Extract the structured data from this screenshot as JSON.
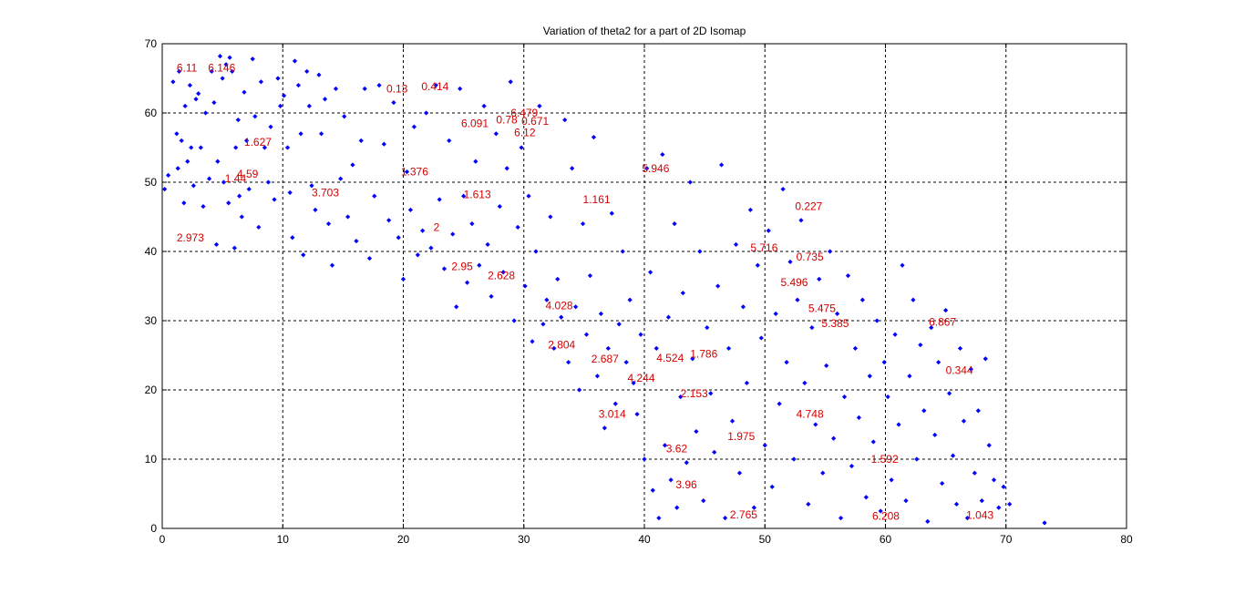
{
  "chart_data": {
    "type": "scatter",
    "title": "Variation of theta2 for a part of 2D Isomap",
    "xlabel": "",
    "ylabel": "",
    "xlim": [
      0,
      80
    ],
    "ylim": [
      0,
      70
    ],
    "x_ticks": [
      "0",
      "10",
      "20",
      "30",
      "40",
      "50",
      "60",
      "70",
      "80"
    ],
    "y_ticks": [
      "0",
      "10",
      "20",
      "30",
      "40",
      "50",
      "60",
      "70"
    ],
    "grid": true,
    "grid_style": "dashed",
    "marker_color": "#0000ff",
    "annotation_color": "#d40000",
    "points": [
      [
        0.2,
        49
      ],
      [
        0.5,
        51
      ],
      [
        0.9,
        64.5
      ],
      [
        1.2,
        57
      ],
      [
        1.3,
        52
      ],
      [
        1.4,
        66
      ],
      [
        1.6,
        56
      ],
      [
        1.8,
        47
      ],
      [
        1.9,
        61
      ],
      [
        2.1,
        53
      ],
      [
        2.3,
        64
      ],
      [
        2.4,
        55
      ],
      [
        2.6,
        49.5
      ],
      [
        2.8,
        62
      ],
      [
        3.0,
        62.8
      ],
      [
        3.2,
        55
      ],
      [
        3.4,
        46.5
      ],
      [
        3.6,
        60
      ],
      [
        3.9,
        50.5
      ],
      [
        4.1,
        66
      ],
      [
        4.3,
        61.5
      ],
      [
        4.5,
        41
      ],
      [
        4.6,
        53
      ],
      [
        4.8,
        68.2
      ],
      [
        5.0,
        65
      ],
      [
        5.1,
        50
      ],
      [
        5.3,
        67
      ],
      [
        5.5,
        47
      ],
      [
        5.6,
        68
      ],
      [
        5.8,
        66
      ],
      [
        6.0,
        40.5
      ],
      [
        6.1,
        55
      ],
      [
        6.3,
        59
      ],
      [
        6.4,
        48
      ],
      [
        6.6,
        45
      ],
      [
        6.8,
        63
      ],
      [
        7.0,
        56
      ],
      [
        7.2,
        49
      ],
      [
        7.5,
        67.8
      ],
      [
        7.7,
        59.5
      ],
      [
        8.0,
        43.5
      ],
      [
        8.2,
        64.5
      ],
      [
        8.5,
        55
      ],
      [
        8.8,
        50
      ],
      [
        9.0,
        58
      ],
      [
        9.3,
        47.5
      ],
      [
        9.6,
        65
      ],
      [
        9.8,
        61
      ],
      [
        10.1,
        62.5
      ],
      [
        10.4,
        55
      ],
      [
        10.6,
        48.5
      ],
      [
        10.8,
        42
      ],
      [
        11.0,
        67.5
      ],
      [
        11.3,
        64
      ],
      [
        11.5,
        57
      ],
      [
        11.7,
        39.5
      ],
      [
        12.0,
        66
      ],
      [
        12.2,
        61
      ],
      [
        12.4,
        49.5
      ],
      [
        12.7,
        46
      ],
      [
        13.0,
        65.5
      ],
      [
        13.2,
        57
      ],
      [
        13.5,
        62
      ],
      [
        13.8,
        44
      ],
      [
        14.1,
        38
      ],
      [
        14.4,
        63.5
      ],
      [
        14.8,
        50.5
      ],
      [
        15.1,
        59.5
      ],
      [
        15.4,
        45
      ],
      [
        15.8,
        52.5
      ],
      [
        16.1,
        41.5
      ],
      [
        16.5,
        56
      ],
      [
        16.8,
        63.5
      ],
      [
        17.2,
        39
      ],
      [
        17.6,
        48
      ],
      [
        18.0,
        64
      ],
      [
        18.4,
        55.5
      ],
      [
        18.8,
        44.5
      ],
      [
        19.2,
        61.5
      ],
      [
        19.6,
        42
      ],
      [
        20.0,
        36
      ],
      [
        20.3,
        51.5
      ],
      [
        20.6,
        46
      ],
      [
        20.9,
        58
      ],
      [
        21.2,
        39.5
      ],
      [
        21.6,
        43
      ],
      [
        21.9,
        60
      ],
      [
        22.3,
        40.5
      ],
      [
        22.7,
        64
      ],
      [
        23.0,
        47.5
      ],
      [
        23.4,
        37.5
      ],
      [
        23.8,
        56
      ],
      [
        24.1,
        42.5
      ],
      [
        24.4,
        32
      ],
      [
        24.7,
        63.5
      ],
      [
        25.0,
        48
      ],
      [
        25.3,
        35.5
      ],
      [
        25.7,
        44
      ],
      [
        26.0,
        53
      ],
      [
        26.3,
        38
      ],
      [
        26.7,
        61
      ],
      [
        27.0,
        41
      ],
      [
        27.3,
        33.5
      ],
      [
        27.7,
        57
      ],
      [
        28.0,
        46.5
      ],
      [
        28.3,
        37
      ],
      [
        28.6,
        52
      ],
      [
        28.9,
        64.5
      ],
      [
        29.2,
        30
      ],
      [
        29.5,
        43.5
      ],
      [
        29.8,
        55
      ],
      [
        30.1,
        35
      ],
      [
        30.4,
        48
      ],
      [
        30.7,
        27
      ],
      [
        31.0,
        40
      ],
      [
        31.3,
        61
      ],
      [
        31.6,
        29.5
      ],
      [
        31.9,
        33
      ],
      [
        32.2,
        45
      ],
      [
        32.5,
        26
      ],
      [
        32.8,
        36
      ],
      [
        33.1,
        30.5
      ],
      [
        33.4,
        59
      ],
      [
        33.7,
        24
      ],
      [
        34.0,
        52
      ],
      [
        34.3,
        32
      ],
      [
        34.6,
        20
      ],
      [
        34.9,
        44
      ],
      [
        35.2,
        28
      ],
      [
        35.5,
        36.5
      ],
      [
        35.8,
        56.5
      ],
      [
        36.1,
        22
      ],
      [
        36.4,
        31
      ],
      [
        36.7,
        14.5
      ],
      [
        37.0,
        26
      ],
      [
        37.3,
        45.5
      ],
      [
        37.6,
        18
      ],
      [
        37.9,
        29.5
      ],
      [
        38.2,
        40
      ],
      [
        38.5,
        24
      ],
      [
        38.8,
        33
      ],
      [
        39.1,
        21
      ],
      [
        39.4,
        16.5
      ],
      [
        39.7,
        28
      ],
      [
        40.0,
        10
      ],
      [
        40.2,
        52
      ],
      [
        40.5,
        37
      ],
      [
        40.7,
        5.5
      ],
      [
        41.0,
        26
      ],
      [
        41.2,
        1.5
      ],
      [
        41.5,
        54
      ],
      [
        41.7,
        12
      ],
      [
        42.0,
        30.5
      ],
      [
        42.2,
        7
      ],
      [
        42.5,
        44
      ],
      [
        42.7,
        3
      ],
      [
        43.0,
        19
      ],
      [
        43.2,
        34
      ],
      [
        43.5,
        9.5
      ],
      [
        43.8,
        50
      ],
      [
        44.0,
        24.5
      ],
      [
        44.3,
        14
      ],
      [
        44.6,
        40
      ],
      [
        44.9,
        4
      ],
      [
        45.2,
        29
      ],
      [
        45.5,
        19.5
      ],
      [
        45.8,
        11
      ],
      [
        46.1,
        35
      ],
      [
        46.4,
        52.5
      ],
      [
        46.7,
        1.5
      ],
      [
        47.0,
        26
      ],
      [
        47.3,
        15.5
      ],
      [
        47.6,
        41
      ],
      [
        47.9,
        8
      ],
      [
        48.2,
        32
      ],
      [
        48.5,
        21
      ],
      [
        48.8,
        46
      ],
      [
        49.1,
        3
      ],
      [
        49.4,
        38
      ],
      [
        49.7,
        27.5
      ],
      [
        50.0,
        12
      ],
      [
        50.3,
        43
      ],
      [
        50.6,
        6
      ],
      [
        50.9,
        31
      ],
      [
        51.2,
        18
      ],
      [
        51.5,
        49
      ],
      [
        51.8,
        24
      ],
      [
        52.1,
        38.5
      ],
      [
        52.4,
        10
      ],
      [
        52.7,
        33
      ],
      [
        53.0,
        44.5
      ],
      [
        53.3,
        21
      ],
      [
        53.6,
        3.5
      ],
      [
        53.9,
        29
      ],
      [
        54.2,
        15
      ],
      [
        54.5,
        36
      ],
      [
        54.8,
        8
      ],
      [
        55.1,
        23.5
      ],
      [
        55.4,
        40
      ],
      [
        55.7,
        13
      ],
      [
        56.0,
        31
      ],
      [
        56.3,
        1.5
      ],
      [
        56.6,
        19
      ],
      [
        56.9,
        36.5
      ],
      [
        57.2,
        9
      ],
      [
        57.5,
        26
      ],
      [
        57.8,
        16
      ],
      [
        58.1,
        33
      ],
      [
        58.4,
        4.5
      ],
      [
        58.7,
        22
      ],
      [
        59.0,
        12.5
      ],
      [
        59.3,
        30
      ],
      [
        59.6,
        2.5
      ],
      [
        59.9,
        24
      ],
      [
        60.2,
        19
      ],
      [
        60.5,
        7
      ],
      [
        60.8,
        28
      ],
      [
        61.1,
        15
      ],
      [
        61.4,
        38
      ],
      [
        61.7,
        4
      ],
      [
        62.0,
        22
      ],
      [
        62.3,
        33
      ],
      [
        62.6,
        10
      ],
      [
        62.9,
        26.5
      ],
      [
        63.2,
        17
      ],
      [
        63.5,
        1
      ],
      [
        63.8,
        29
      ],
      [
        64.1,
        13.5
      ],
      [
        64.4,
        24
      ],
      [
        64.7,
        6.5
      ],
      [
        65.0,
        31.5
      ],
      [
        65.3,
        19.5
      ],
      [
        65.6,
        10.5
      ],
      [
        65.9,
        3.5
      ],
      [
        66.2,
        26
      ],
      [
        66.5,
        15.5
      ],
      [
        66.8,
        1.5
      ],
      [
        67.1,
        23
      ],
      [
        67.4,
        8
      ],
      [
        67.7,
        17
      ],
      [
        68.0,
        4
      ],
      [
        68.3,
        24.5
      ],
      [
        68.6,
        12
      ],
      [
        69.0,
        7
      ],
      [
        69.4,
        3
      ],
      [
        69.8,
        6
      ],
      [
        70.3,
        3.5
      ],
      [
        73.2,
        0.8
      ]
    ],
    "annotations": [
      {
        "x": 1.2,
        "y": 66.5,
        "text": "6.11"
      },
      {
        "x": 3.8,
        "y": 66.5,
        "text": "6.146"
      },
      {
        "x": 18.6,
        "y": 63.5,
        "text": "0.13"
      },
      {
        "x": 21.5,
        "y": 63.8,
        "text": "0.414"
      },
      {
        "x": 24.8,
        "y": 58.5,
        "text": "6.091"
      },
      {
        "x": 27.7,
        "y": 59.0,
        "text": "0.78"
      },
      {
        "x": 28.9,
        "y": 60.0,
        "text": "6.479"
      },
      {
        "x": 29.8,
        "y": 58.8,
        "text": "0.671"
      },
      {
        "x": 29.2,
        "y": 57.2,
        "text": "6.12"
      },
      {
        "x": 6.8,
        "y": 55.8,
        "text": "1.627"
      },
      {
        "x": 6.2,
        "y": 51.2,
        "text": "4.59"
      },
      {
        "x": 5.2,
        "y": 50.5,
        "text": "1.44"
      },
      {
        "x": 19.8,
        "y": 51.5,
        "text": "1.376"
      },
      {
        "x": 12.4,
        "y": 48.5,
        "text": "3.703"
      },
      {
        "x": 25.0,
        "y": 48.2,
        "text": "1.613"
      },
      {
        "x": 34.9,
        "y": 47.5,
        "text": "1.161"
      },
      {
        "x": 39.8,
        "y": 52.0,
        "text": "5.946"
      },
      {
        "x": 52.5,
        "y": 46.5,
        "text": "0.227"
      },
      {
        "x": 22.5,
        "y": 43.5,
        "text": "2"
      },
      {
        "x": 1.2,
        "y": 42.0,
        "text": "2.973"
      },
      {
        "x": 48.8,
        "y": 40.5,
        "text": "5.716"
      },
      {
        "x": 52.6,
        "y": 39.2,
        "text": "0.735"
      },
      {
        "x": 24.0,
        "y": 37.8,
        "text": "2.95"
      },
      {
        "x": 27.0,
        "y": 36.5,
        "text": "2.628"
      },
      {
        "x": 51.3,
        "y": 35.5,
        "text": "5.496"
      },
      {
        "x": 31.8,
        "y": 32.2,
        "text": "4.028"
      },
      {
        "x": 53.6,
        "y": 31.8,
        "text": "5.475"
      },
      {
        "x": 54.7,
        "y": 29.6,
        "text": "5.385"
      },
      {
        "x": 63.6,
        "y": 29.8,
        "text": "6.867"
      },
      {
        "x": 32.0,
        "y": 26.5,
        "text": "2.804"
      },
      {
        "x": 35.6,
        "y": 24.5,
        "text": "2.687"
      },
      {
        "x": 41.0,
        "y": 24.6,
        "text": "4.524"
      },
      {
        "x": 43.8,
        "y": 25.2,
        "text": "1.786"
      },
      {
        "x": 38.6,
        "y": 21.7,
        "text": "4.244"
      },
      {
        "x": 65.0,
        "y": 22.8,
        "text": "0.344"
      },
      {
        "x": 43.0,
        "y": 19.5,
        "text": "2.153"
      },
      {
        "x": 36.2,
        "y": 16.5,
        "text": "3.014"
      },
      {
        "x": 52.6,
        "y": 16.5,
        "text": "4.748"
      },
      {
        "x": 46.9,
        "y": 13.3,
        "text": "1.975"
      },
      {
        "x": 41.8,
        "y": 11.5,
        "text": "3.62"
      },
      {
        "x": 58.8,
        "y": 10.0,
        "text": "1.592"
      },
      {
        "x": 42.6,
        "y": 6.3,
        "text": "3.96"
      },
      {
        "x": 47.1,
        "y": 2.0,
        "text": "2.765"
      },
      {
        "x": 58.9,
        "y": 1.8,
        "text": "6.208"
      },
      {
        "x": 66.7,
        "y": 1.9,
        "text": "1.043"
      }
    ]
  }
}
